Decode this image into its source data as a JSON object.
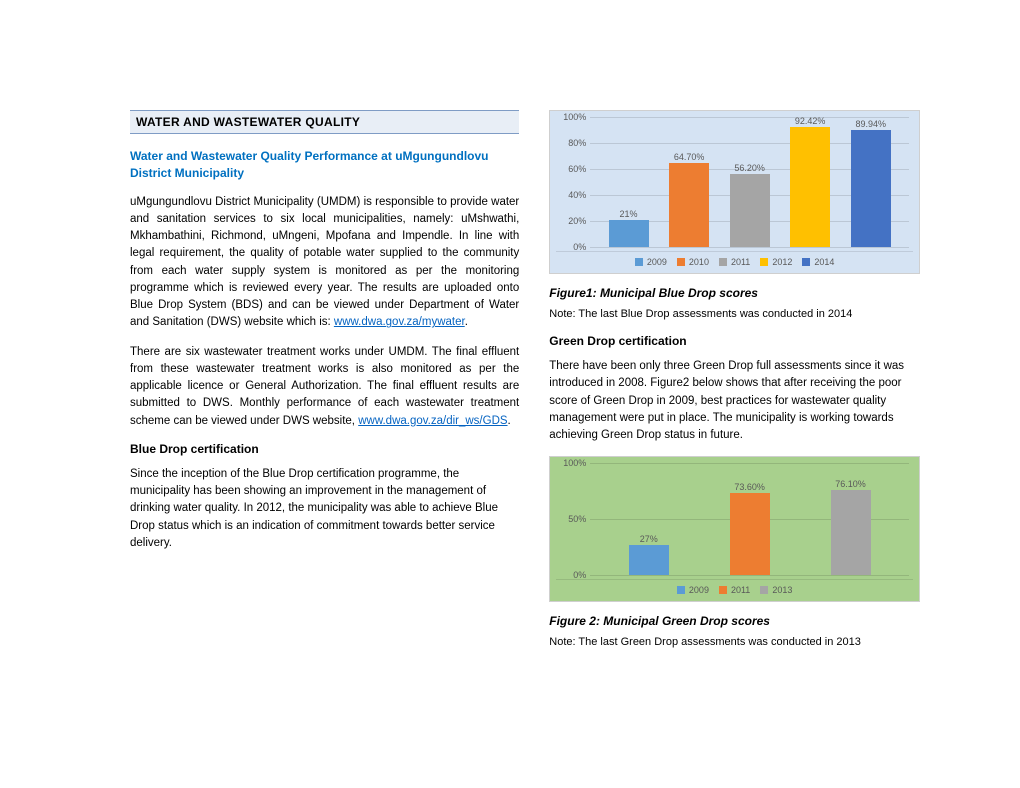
{
  "left": {
    "section_header": "WATER AND WASTEWATER QUALITY",
    "sub_title": "Water and Wastewater Quality Performance at uMgungundlovu District Municipality",
    "para1_a": "uMgungundlovu District Municipality (UMDM) is responsible to provide water and sanitation services to six local municipalities, namely: uMshwathi, Mkhambathini, Richmond, uMngeni, Mpofana and Impendle. In line with legal requirement, the quality of potable water supplied to the community from each water supply system is monitored as per the monitoring programme which is reviewed every year. The results are uploaded onto Blue Drop System (BDS) and can be viewed under Department of Water and Sanitation (DWS) website which is: ",
    "link1": "www.dwa.gov.za/mywater",
    "para1_b": ".",
    "para2_a": "There are six wastewater treatment works under UMDM. The final effluent from these wastewater treatment works is also monitored as per the applicable licence or General Authorization. The final effluent results are submitted to DWS. Monthly performance of each wastewater treatment scheme can be viewed under DWS website, ",
    "link2": "www.dwa.gov.za/dir_ws/GDS",
    "para2_b": ".",
    "blue_head": "Blue Drop certification",
    "para3": "Since the inception of the Blue Drop certification programme, the municipality has been showing an improvement in the management of drinking water quality. In 2012, the municipality was able to achieve Blue Drop status which is an indication of commitment towards better service delivery."
  },
  "right": {
    "fig1_caption": "Figure1: Municipal Blue Drop scores",
    "note1": "Note: The last Blue Drop assessments was conducted in 2014",
    "green_head": "Green Drop certification",
    "para4": "There have been only three Green Drop full assessments since it was introduced in 2008. Figure2 below shows that after receiving the poor score of Green Drop in 2009, best practices for wastewater quality management were put in place. The municipality is working towards achieving Green Drop status in future.",
    "fig2_caption": "Figure 2: Municipal Green Drop scores",
    "note2": "Note: The last Green Drop assessments was conducted in 2013"
  },
  "chart1": {
    "type": "bar",
    "background_color": "#d5e3f3",
    "border_color": "#cfcfcf",
    "ylim": [
      0,
      100
    ],
    "ytick_step": 20,
    "ytick_suffix": "%",
    "grid_color": "rgba(0,0,0,0.12)",
    "bars": [
      {
        "label": "21%",
        "value": 21,
        "color": "#5b9bd5",
        "year": "2009"
      },
      {
        "label": "64.70%",
        "value": 64.7,
        "color": "#ed7d31",
        "year": "2010"
      },
      {
        "label": "56.20%",
        "value": 56.2,
        "color": "#a5a5a5",
        "year": "2011"
      },
      {
        "label": "92.42%",
        "value": 92.42,
        "color": "#ffc000",
        "year": "2012"
      },
      {
        "label": "89.94%",
        "value": 89.94,
        "color": "#4472c4",
        "year": "2014"
      }
    ],
    "legend": [
      {
        "label": "2009",
        "color": "#5b9bd5"
      },
      {
        "label": "2010",
        "color": "#ed7d31"
      },
      {
        "label": "2011",
        "color": "#a5a5a5"
      },
      {
        "label": "2012",
        "color": "#ffc000"
      },
      {
        "label": "2014",
        "color": "#4472c4"
      }
    ]
  },
  "chart2": {
    "type": "bar",
    "background_color": "#a8d08d",
    "border_color": "#cfcfcf",
    "ylim": [
      0,
      100
    ],
    "ytick_step": 50,
    "ytick_suffix": "%",
    "grid_color": "rgba(0,0,0,0.12)",
    "bars": [
      {
        "label": "27%",
        "value": 27,
        "color": "#5b9bd5",
        "year": "2009"
      },
      {
        "label": "73.60%",
        "value": 73.6,
        "color": "#ed7d31",
        "year": "2011"
      },
      {
        "label": "76.10%",
        "value": 76.1,
        "color": "#a5a5a5",
        "year": "2013"
      }
    ],
    "legend": [
      {
        "label": "2009",
        "color": "#5b9bd5"
      },
      {
        "label": "2011",
        "color": "#ed7d31"
      },
      {
        "label": "2013",
        "color": "#a5a5a5"
      }
    ]
  }
}
